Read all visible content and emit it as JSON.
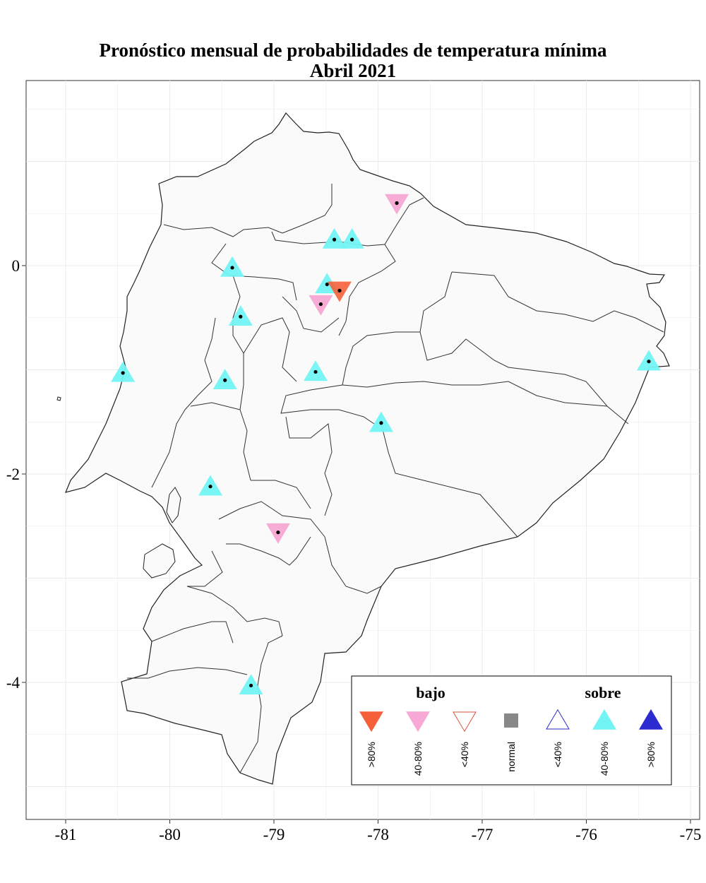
{
  "title": "Pronóstico mensual de probabilidades de temperatura mínima",
  "subtitle": "Abril 2021",
  "colors": {
    "bajo_80": "#f5603a",
    "bajo_4080": "#f7a8d4",
    "bajo_40": "#d9533b",
    "normal": "#888888",
    "sobre_40": "#2b2bd0",
    "sobre_4080": "#72f4f4",
    "sobre_80": "#2b2bd0",
    "land": "#fafafa",
    "grid": "#ebebeb"
  },
  "axes": {
    "x_ticks": [
      {
        "value": -81,
        "label": "-81"
      },
      {
        "value": -80,
        "label": "-80"
      },
      {
        "value": -79,
        "label": "-79"
      },
      {
        "value": -78,
        "label": "-78"
      },
      {
        "value": -77,
        "label": "-77"
      },
      {
        "value": -76,
        "label": "-76"
      },
      {
        "value": -75,
        "label": "-75"
      }
    ],
    "y_ticks": [
      {
        "value": 0,
        "label": "0"
      },
      {
        "value": -2,
        "label": "-2"
      },
      {
        "value": -4,
        "label": "-4"
      }
    ],
    "xlim": [
      -81.38,
      -74.9
    ],
    "ylim": [
      -5.27,
      1.77
    ]
  },
  "stations": [
    {
      "lon": -77.82,
      "lat": 0.6,
      "category": "bajo_4080"
    },
    {
      "lon": -78.42,
      "lat": 0.25,
      "category": "sobre_4080"
    },
    {
      "lon": -78.25,
      "lat": 0.25,
      "category": "sobre_4080"
    },
    {
      "lon": -79.4,
      "lat": -0.02,
      "category": "sobre_4080"
    },
    {
      "lon": -78.49,
      "lat": -0.18,
      "category": "sobre_4080"
    },
    {
      "lon": -78.37,
      "lat": -0.24,
      "category": "bajo_80"
    },
    {
      "lon": -78.55,
      "lat": -0.37,
      "category": "bajo_4080"
    },
    {
      "lon": -79.32,
      "lat": -0.49,
      "category": "sobre_4080"
    },
    {
      "lon": -80.45,
      "lat": -1.03,
      "category": "sobre_4080"
    },
    {
      "lon": -79.47,
      "lat": -1.1,
      "category": "sobre_4080"
    },
    {
      "lon": -78.6,
      "lat": -1.02,
      "category": "sobre_4080"
    },
    {
      "lon": -77.97,
      "lat": -1.51,
      "category": "sobre_4080"
    },
    {
      "lon": -75.4,
      "lat": -0.92,
      "category": "sobre_4080"
    },
    {
      "lon": -79.61,
      "lat": -2.12,
      "category": "sobre_4080"
    },
    {
      "lon": -78.96,
      "lat": -2.56,
      "category": "bajo_4080"
    },
    {
      "lon": -79.22,
      "lat": -4.03,
      "category": "sobre_4080"
    }
  ],
  "legend": {
    "bajo_label": "bajo",
    "sobre_label": "sobre",
    "items": [
      {
        "label": ">80%",
        "category": "bajo_80",
        "shape": "down-filled"
      },
      {
        "label": "40-80%",
        "category": "bajo_4080",
        "shape": "down-filled"
      },
      {
        "label": "<40%",
        "category": "bajo_40",
        "shape": "down-open"
      },
      {
        "label": "normal",
        "category": "normal",
        "shape": "square"
      },
      {
        "label": "<40%",
        "category": "sobre_40",
        "shape": "up-open"
      },
      {
        "label": "40-80%",
        "category": "sobre_4080",
        "shape": "up-filled"
      },
      {
        "label": ">80%",
        "category": "sobre_80",
        "shape": "up-filled"
      }
    ]
  }
}
